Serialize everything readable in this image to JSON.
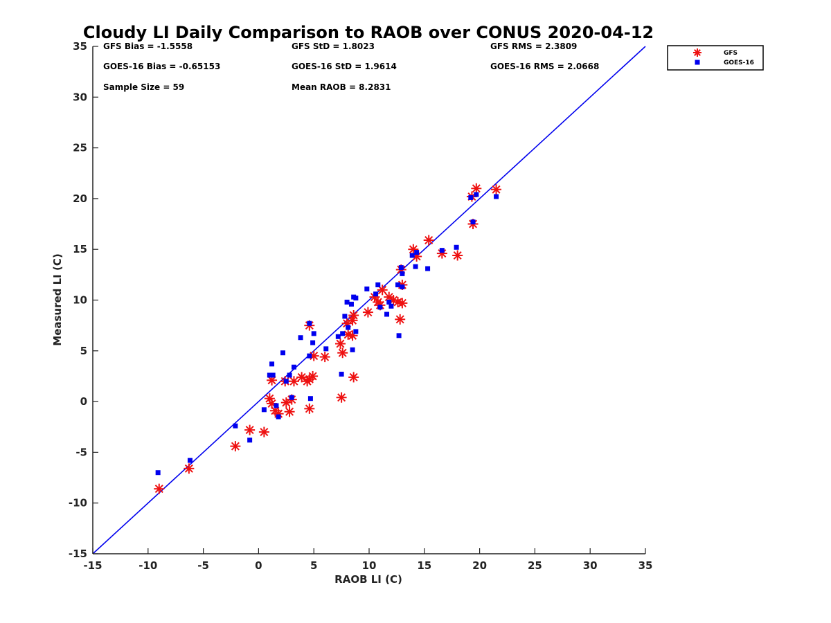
{
  "chart_data": {
    "type": "scatter",
    "title": "Cloudy LI Daily Comparison to RAOB over CONUS 2020-04-12",
    "xlabel": "RAOB LI (C)",
    "ylabel": "Measured LI (C)",
    "xlim": [
      -15,
      35
    ],
    "ylim": [
      -15,
      35
    ],
    "xticks": [
      "-15",
      "-10",
      "-5",
      "0",
      "5",
      "10",
      "15",
      "20",
      "25",
      "30",
      "35"
    ],
    "yticks": [
      "-15",
      "-10",
      "-5",
      "0",
      "5",
      "10",
      "15",
      "20",
      "25",
      "30",
      "35"
    ],
    "grid": false,
    "legend_position": "outside top-right",
    "stats": [
      [
        "GFS Bias = -1.5558",
        "GFS StD = 1.8023",
        "GFS RMS = 2.3809"
      ],
      [
        "GOES-16 Bias = -0.65153",
        "GOES-16 StD = 1.9614",
        "GOES-16 RMS = 2.0668"
      ],
      [
        "Sample Size = 59",
        "Mean RAOB = 8.2831",
        ""
      ]
    ],
    "reference_line": {
      "x": [
        -15,
        35
      ],
      "y": [
        -15,
        35
      ],
      "color": "#0000ee"
    },
    "series": [
      {
        "name": "GFS",
        "marker": "asterisk",
        "color": "#ee1111",
        "points": [
          [
            -9.0,
            -8.6
          ],
          [
            -6.3,
            -6.6
          ],
          [
            -2.1,
            -4.4
          ],
          [
            -0.8,
            -2.8
          ],
          [
            0.5,
            -3.0
          ],
          [
            1.0,
            0.3
          ],
          [
            1.2,
            -0.2
          ],
          [
            1.5,
            -0.9
          ],
          [
            1.8,
            -1.2
          ],
          [
            2.4,
            2.0
          ],
          [
            1.2,
            2.1
          ],
          [
            2.5,
            -0.1
          ],
          [
            2.8,
            -1.0
          ],
          [
            3.0,
            0.2
          ],
          [
            3.2,
            2.0
          ],
          [
            3.9,
            2.4
          ],
          [
            4.4,
            2.0
          ],
          [
            4.6,
            2.2
          ],
          [
            4.9,
            2.5
          ],
          [
            4.6,
            -0.7
          ],
          [
            5.0,
            4.5
          ],
          [
            6.0,
            4.4
          ],
          [
            4.6,
            7.5
          ],
          [
            7.4,
            5.7
          ],
          [
            7.6,
            4.8
          ],
          [
            7.5,
            0.4
          ],
          [
            8.1,
            6.6
          ],
          [
            8.5,
            6.5
          ],
          [
            8.0,
            7.7
          ],
          [
            8.5,
            8.0
          ],
          [
            8.6,
            8.5
          ],
          [
            8.6,
            2.4
          ],
          [
            9.9,
            8.8
          ],
          [
            10.5,
            10.3
          ],
          [
            10.8,
            9.8
          ],
          [
            11.0,
            9.5
          ],
          [
            11.2,
            11.0
          ],
          [
            11.8,
            10.3
          ],
          [
            12.2,
            10.0
          ],
          [
            12.6,
            9.8
          ],
          [
            13.0,
            9.7
          ],
          [
            12.8,
            8.1
          ],
          [
            13.0,
            11.5
          ],
          [
            12.9,
            13.0
          ],
          [
            14.0,
            15.0
          ],
          [
            14.3,
            14.3
          ],
          [
            15.4,
            15.9
          ],
          [
            16.6,
            14.6
          ],
          [
            18.0,
            14.4
          ],
          [
            19.4,
            17.5
          ],
          [
            19.3,
            20.2
          ],
          [
            19.7,
            21.0
          ],
          [
            21.5,
            20.9
          ]
        ]
      },
      {
        "name": "GOES-16",
        "marker": "square",
        "color": "#0000ee",
        "points": [
          [
            -9.1,
            -7.0
          ],
          [
            -6.2,
            -5.8
          ],
          [
            -2.1,
            -2.4
          ],
          [
            -0.8,
            -3.8
          ],
          [
            0.5,
            -0.8
          ],
          [
            1.2,
            3.7
          ],
          [
            1.0,
            2.6
          ],
          [
            1.3,
            2.6
          ],
          [
            1.6,
            -0.4
          ],
          [
            1.8,
            -1.5
          ],
          [
            2.2,
            4.8
          ],
          [
            2.5,
            2.0
          ],
          [
            2.8,
            2.6
          ],
          [
            3.0,
            0.4
          ],
          [
            3.2,
            3.4
          ],
          [
            3.8,
            6.3
          ],
          [
            4.6,
            4.5
          ],
          [
            4.6,
            7.7
          ],
          [
            4.7,
            0.3
          ],
          [
            4.9,
            5.8
          ],
          [
            5.0,
            6.7
          ],
          [
            6.1,
            5.2
          ],
          [
            7.2,
            6.4
          ],
          [
            7.6,
            6.7
          ],
          [
            7.5,
            2.7
          ],
          [
            7.8,
            8.4
          ],
          [
            8.0,
            9.8
          ],
          [
            8.1,
            7.3
          ],
          [
            8.4,
            9.6
          ],
          [
            8.6,
            10.3
          ],
          [
            8.8,
            10.2
          ],
          [
            8.5,
            5.1
          ],
          [
            8.8,
            6.9
          ],
          [
            9.8,
            11.1
          ],
          [
            10.6,
            10.6
          ],
          [
            10.8,
            11.5
          ],
          [
            11.0,
            9.3
          ],
          [
            11.6,
            8.6
          ],
          [
            11.8,
            9.8
          ],
          [
            12.0,
            9.4
          ],
          [
            12.6,
            11.5
          ],
          [
            12.7,
            6.5
          ],
          [
            12.9,
            13.2
          ],
          [
            13.0,
            12.6
          ],
          [
            13.0,
            11.3
          ],
          [
            13.9,
            14.4
          ],
          [
            14.2,
            13.3
          ],
          [
            14.3,
            14.7
          ],
          [
            15.3,
            13.1
          ],
          [
            16.6,
            14.9
          ],
          [
            17.9,
            15.2
          ],
          [
            19.2,
            20.1
          ],
          [
            19.4,
            17.7
          ],
          [
            19.7,
            20.4
          ],
          [
            21.5,
            20.2
          ]
        ]
      }
    ]
  }
}
